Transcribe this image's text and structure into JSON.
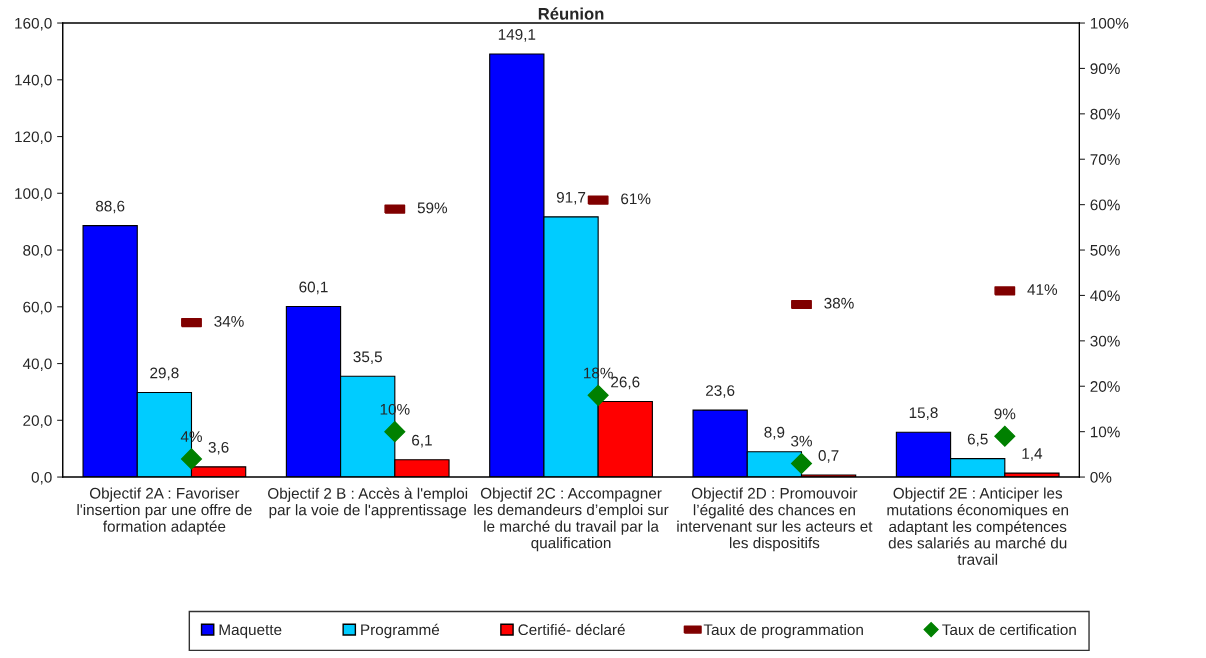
{
  "chart_data": {
    "type": "bar",
    "title": "Réunion",
    "categories": [
      "Objectif 2A : Favoriser\nl'insertion par une offre de\nformation adaptée",
      "Objectif 2 B : Accès à l'emploi\npar la voie de l'apprentissage",
      "Objectif 2C : Accompagner\nles demandeurs d’emploi sur\nle marché du travail par la\nqualification",
      "Objectif 2D : Promouvoir\nl’égalité des chances en\nintervenant sur les acteurs et\nles dispositifs",
      "Objectif 2E : Anticiper les\nmutations économiques en\nadaptant les compétences\ndes salariés au marché du\ntravail"
    ],
    "series": [
      {
        "name": "Maquette",
        "color": "#0000ff",
        "values": [
          88.6,
          60.1,
          149.1,
          23.6,
          15.8
        ],
        "value_labels": [
          "88,6",
          "60,1",
          "149,1",
          "23,6",
          "15,8"
        ]
      },
      {
        "name": "Programmé",
        "color": "#00ccff",
        "values": [
          29.8,
          35.5,
          91.7,
          8.9,
          6.5
        ],
        "value_labels": [
          "29,8",
          "35,5",
          "91,7",
          "8,9",
          "6,5"
        ]
      },
      {
        "name": "Certifié- déclaré",
        "color": "#ff0000",
        "values": [
          3.6,
          6.1,
          26.6,
          0.7,
          1.4
        ],
        "value_labels": [
          "3,6",
          "6,1",
          "26,6",
          "0,7",
          "1,4"
        ]
      },
      {
        "name": "Taux de programmation",
        "type": "scatter",
        "axis": "y2",
        "color": "#800000",
        "values": [
          34,
          59,
          61,
          38,
          41
        ],
        "value_labels": [
          "34%",
          "59%",
          "61%",
          "38%",
          "41%"
        ]
      },
      {
        "name": "Taux de certification",
        "type": "scatter",
        "marker": "diamond",
        "axis": "y2",
        "color": "#008000",
        "values": [
          4,
          10,
          18,
          3,
          9
        ],
        "value_labels": [
          "4%",
          "10%",
          "18%",
          "3%",
          "9%"
        ]
      }
    ],
    "ylim": [
      0,
      160
    ],
    "yticks": [
      {
        "value": 0,
        "label": "0,0"
      },
      {
        "value": 20,
        "label": "20,0"
      },
      {
        "value": 40,
        "label": "40,0"
      },
      {
        "value": 60,
        "label": "60,0"
      },
      {
        "value": 80,
        "label": "80,0"
      },
      {
        "value": 100,
        "label": "100,0"
      },
      {
        "value": 120,
        "label": "120,0"
      },
      {
        "value": 140,
        "label": "140,0"
      },
      {
        "value": 160,
        "label": "160,0"
      }
    ],
    "y2lim": [
      0,
      100
    ],
    "y2ticks": [
      {
        "value": 0,
        "label": "0%"
      },
      {
        "value": 10,
        "label": "10%"
      },
      {
        "value": 20,
        "label": "20%"
      },
      {
        "value": 30,
        "label": "30%"
      },
      {
        "value": 40,
        "label": "40%"
      },
      {
        "value": 50,
        "label": "50%"
      },
      {
        "value": 60,
        "label": "60%"
      },
      {
        "value": 70,
        "label": "70%"
      },
      {
        "value": 80,
        "label": "80%"
      },
      {
        "value": 90,
        "label": "90%"
      },
      {
        "value": 100,
        "label": "100%"
      }
    ],
    "legend": "bottom",
    "grid": false
  }
}
